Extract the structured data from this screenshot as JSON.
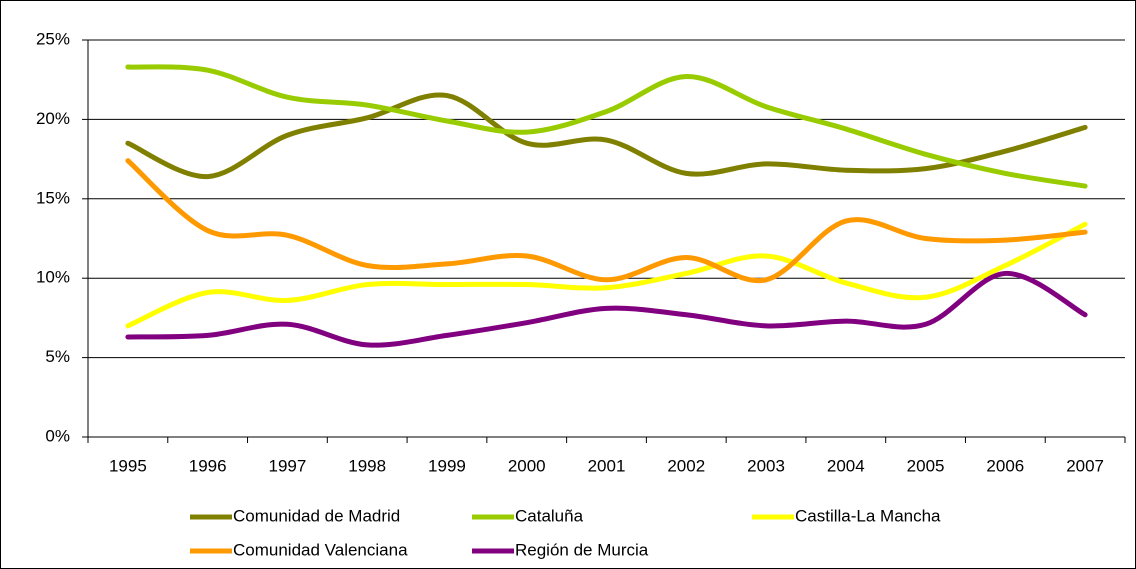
{
  "chart_data": {
    "type": "line",
    "categories": [
      "1995",
      "1996",
      "1997",
      "1998",
      "1999",
      "2000",
      "2001",
      "2002",
      "2003",
      "2004",
      "2005",
      "2006",
      "2007"
    ],
    "series": [
      {
        "name": "Comunidad de Madrid",
        "color": "#808000",
        "values": [
          18.5,
          16.4,
          19.0,
          20.1,
          21.5,
          18.5,
          18.7,
          16.6,
          17.2,
          16.8,
          16.9,
          18.0,
          19.5
        ]
      },
      {
        "name": "Cataluña",
        "color": "#99cc00",
        "values": [
          23.3,
          23.1,
          21.4,
          20.9,
          19.9,
          19.2,
          20.5,
          22.7,
          20.8,
          19.4,
          17.8,
          16.6,
          15.8
        ]
      },
      {
        "name": "Castilla-La Mancha",
        "color": "#ffff00",
        "values": [
          7.0,
          9.1,
          8.6,
          9.6,
          9.6,
          9.6,
          9.4,
          10.3,
          11.4,
          9.7,
          8.8,
          10.8,
          13.4
        ]
      },
      {
        "name": "Comunidad Valenciana",
        "color": "#ff9900",
        "values": [
          17.4,
          13.0,
          12.7,
          10.8,
          10.9,
          11.4,
          9.9,
          11.3,
          9.9,
          13.6,
          12.5,
          12.4,
          12.9
        ]
      },
      {
        "name": "Región de Murcia",
        "color": "#800080",
        "values": [
          6.3,
          6.4,
          7.1,
          5.8,
          6.4,
          7.2,
          8.1,
          7.7,
          7.0,
          7.3,
          7.1,
          10.3,
          7.7
        ]
      }
    ],
    "ylim": [
      0,
      25
    ],
    "yticks": [
      {
        "value": 0,
        "label": "0%"
      },
      {
        "value": 5,
        "label": "5%"
      },
      {
        "value": 10,
        "label": "10%"
      },
      {
        "value": 15,
        "label": "15%"
      },
      {
        "value": 20,
        "label": "20%"
      },
      {
        "value": 25,
        "label": "25%"
      }
    ],
    "grid": true,
    "smooth": true
  }
}
